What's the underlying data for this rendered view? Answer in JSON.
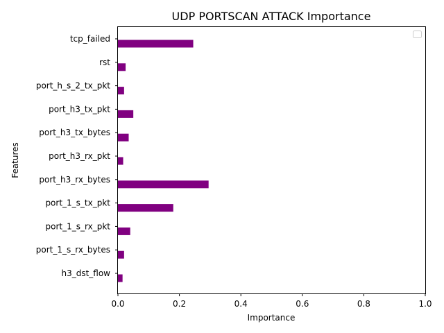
{
  "chart_data": {
    "type": "bar",
    "orientation": "horizontal",
    "title": "UDP PORTSCAN ATTACK Importance",
    "xlabel": "Importance",
    "ylabel": "Features",
    "xlim": [
      0,
      1
    ],
    "x_ticks": [
      "0.0",
      "0.2",
      "0.4",
      "0.6",
      "0.8",
      "1.0"
    ],
    "categories": [
      "h3_dst_flow",
      "port_1_s_rx_bytes",
      "port_1_s_rx_pkt",
      "port_1_s_tx_pkt",
      "port_h3_rx_bytes",
      "port_h3_rx_pkt",
      "port_h3_tx_bytes",
      "port_h3_tx_pkt",
      "port_h_s_2_tx_pkt",
      "rst",
      "tcp_failed"
    ],
    "values": [
      0.015,
      0.02,
      0.04,
      0.18,
      0.295,
      0.017,
      0.035,
      0.05,
      0.02,
      0.025,
      0.245
    ],
    "bar_color": "#800080",
    "legend": "top-right",
    "legend_entries": [],
    "grid": false
  }
}
